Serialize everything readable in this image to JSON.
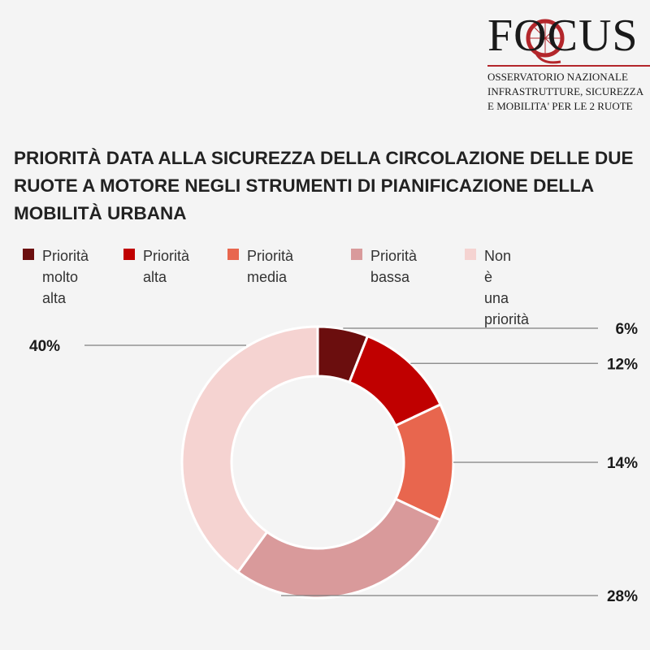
{
  "logo": {
    "word": "FOCUS",
    "lines": [
      "OSSERVATORIO NAZIONALE",
      "INFRASTRUTTURE, SICUREZZA",
      "E MOBILITA' PER LE 2 RUOTE"
    ]
  },
  "chart_data": {
    "type": "pie",
    "donut": true,
    "title_lines": [
      "PRIORITÀ DATA ALLA SICUREZZA DELLA CIRCOLAZIONE DELLE DUE",
      "RUOTE A MOTORE NEGLI STRUMENTI DI PIANIFICAZIONE DELLA",
      "MOBILITÀ URBANA"
    ],
    "legend_position": "top",
    "categories": [
      "Priorità molto alta",
      "Priorità alta",
      "Priorità media",
      "Priorità bassa",
      "Non è una priorità"
    ],
    "values": [
      6,
      12,
      14,
      28,
      40
    ],
    "labels": [
      "6%",
      "12%",
      "14%",
      "28%",
      "40%"
    ],
    "colors": [
      "#6b0e0e",
      "#c00000",
      "#e8664e",
      "#d99a9b",
      "#f5d3d1"
    ]
  }
}
